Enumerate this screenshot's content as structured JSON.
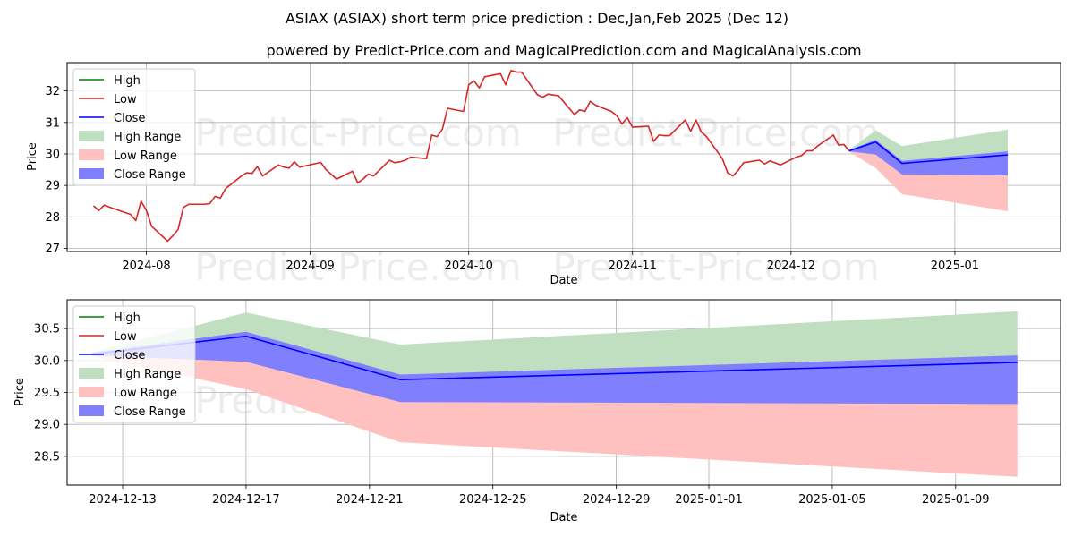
{
  "title": "ASIAX (ASIAX) short term price prediction : Dec,Jan,Feb 2025 (Dec 12)",
  "subtitle": "powered by Predict-Price.com and MagicalPrediction.com and MagicalAnalysis.com",
  "watermark": "Predict-Price.com",
  "colors": {
    "high": "#008000",
    "low": "#d62728",
    "close": "#0000ff",
    "high_range": "#c0dfc0",
    "low_range": "#ffc0c0",
    "close_range": "#8080ff"
  },
  "chart_data": [
    {
      "type": "line",
      "xlabel": "Date",
      "ylabel": "Price",
      "xlim": [
        "2024-07-17",
        "2025-01-21"
      ],
      "ylim": [
        26.9,
        32.9
      ],
      "x_ticks": [
        "2024-08",
        "2024-09",
        "2024-10",
        "2024-11",
        "2024-12",
        "2025-01"
      ],
      "y_ticks": [
        27,
        28,
        29,
        30,
        31,
        32
      ],
      "grid": true,
      "legend_position": "top-left",
      "legend": [
        "High",
        "Low",
        "Close",
        "High Range",
        "Low Range",
        "Close Range"
      ],
      "history_dates": [
        "2024-07-22",
        "2024-07-23",
        "2024-07-24",
        "2024-07-26",
        "2024-07-29",
        "2024-07-30",
        "2024-07-31",
        "2024-08-01",
        "2024-08-02",
        "2024-08-05",
        "2024-08-06",
        "2024-08-07",
        "2024-08-08",
        "2024-08-09",
        "2024-08-12",
        "2024-08-13",
        "2024-08-14",
        "2024-08-15",
        "2024-08-16",
        "2024-08-19",
        "2024-08-20",
        "2024-08-21",
        "2024-08-22",
        "2024-08-23",
        "2024-08-26",
        "2024-08-27",
        "2024-08-28",
        "2024-08-29",
        "2024-08-30",
        "2024-09-03",
        "2024-09-04",
        "2024-09-05",
        "2024-09-06",
        "2024-09-09",
        "2024-09-10",
        "2024-09-11",
        "2024-09-12",
        "2024-09-13",
        "2024-09-16",
        "2024-09-17",
        "2024-09-18",
        "2024-09-19",
        "2024-09-20",
        "2024-09-23",
        "2024-09-24",
        "2024-09-25",
        "2024-09-26",
        "2024-09-27",
        "2024-09-30",
        "2024-10-01",
        "2024-10-02",
        "2024-10-03",
        "2024-10-04",
        "2024-10-07",
        "2024-10-08",
        "2024-10-09",
        "2024-10-10",
        "2024-10-11",
        "2024-10-14",
        "2024-10-15",
        "2024-10-16",
        "2024-10-17",
        "2024-10-18",
        "2024-10-21",
        "2024-10-22",
        "2024-10-23",
        "2024-10-24",
        "2024-10-25",
        "2024-10-28",
        "2024-10-29",
        "2024-10-30",
        "2024-10-31",
        "2024-11-01",
        "2024-11-04",
        "2024-11-05",
        "2024-11-06",
        "2024-11-07",
        "2024-11-08",
        "2024-11-11",
        "2024-11-12",
        "2024-11-13",
        "2024-11-14",
        "2024-11-15",
        "2024-11-18",
        "2024-11-19",
        "2024-11-20",
        "2024-11-21",
        "2024-11-22",
        "2024-11-25",
        "2024-11-26",
        "2024-11-27",
        "2024-11-29",
        "2024-12-02",
        "2024-12-03",
        "2024-12-04",
        "2024-12-05",
        "2024-12-06",
        "2024-12-09",
        "2024-12-10",
        "2024-12-11",
        "2024-12-12"
      ],
      "history_low": [
        28.35,
        28.2,
        28.37,
        28.25,
        28.08,
        27.88,
        28.5,
        28.2,
        27.7,
        27.23,
        27.4,
        27.6,
        28.3,
        28.4,
        28.4,
        28.42,
        28.65,
        28.6,
        28.9,
        29.3,
        29.4,
        29.38,
        29.6,
        29.3,
        29.65,
        29.58,
        29.55,
        29.75,
        29.58,
        29.73,
        29.5,
        29.35,
        29.2,
        29.45,
        29.08,
        29.2,
        29.36,
        29.3,
        29.8,
        29.72,
        29.75,
        29.8,
        29.9,
        29.85,
        30.6,
        30.55,
        30.78,
        31.45,
        31.35,
        32.2,
        32.32,
        32.1,
        32.45,
        32.55,
        32.2,
        32.65,
        32.6,
        32.6,
        31.88,
        31.8,
        31.9,
        31.87,
        31.85,
        31.25,
        31.4,
        31.35,
        31.67,
        31.55,
        31.35,
        31.22,
        30.95,
        31.15,
        30.85,
        30.88,
        30.4,
        30.6,
        30.58,
        30.58,
        31.08,
        30.72,
        31.08,
        30.7,
        30.55,
        29.85,
        29.4,
        29.3,
        29.48,
        29.72,
        29.8,
        29.68,
        29.78,
        29.65,
        29.9,
        29.95,
        30.1,
        30.1,
        30.25,
        30.6,
        30.28,
        30.3,
        30.1
      ],
      "forecast_dates": [
        "2024-12-12",
        "2024-12-17",
        "2024-12-22",
        "2025-01-11"
      ],
      "close": [
        30.1,
        30.38,
        29.7,
        29.97
      ],
      "close_high": [
        30.12,
        30.45,
        29.78,
        30.08
      ],
      "close_low": [
        30.08,
        29.98,
        29.35,
        29.32
      ],
      "high_high": [
        30.13,
        30.75,
        30.25,
        30.77
      ],
      "low_low": [
        30.07,
        29.55,
        28.72,
        28.18
      ]
    },
    {
      "type": "line",
      "xlabel": "Date",
      "ylabel": "Price",
      "xlim": [
        "2024-12-11.2",
        "2025-01-12.4"
      ],
      "ylim": [
        28.05,
        30.95
      ],
      "x_ticks": [
        "2024-12-13",
        "2024-12-17",
        "2024-12-21",
        "2024-12-25",
        "2024-12-29",
        "2025-01-01",
        "2025-01-05",
        "2025-01-09"
      ],
      "y_ticks": [
        "28.5",
        "29.0",
        "29.5",
        "30.0",
        "30.5"
      ],
      "grid": true,
      "legend_position": "top-left",
      "legend": [
        "High",
        "Low",
        "Close",
        "High Range",
        "Low Range",
        "Close Range"
      ]
    }
  ]
}
